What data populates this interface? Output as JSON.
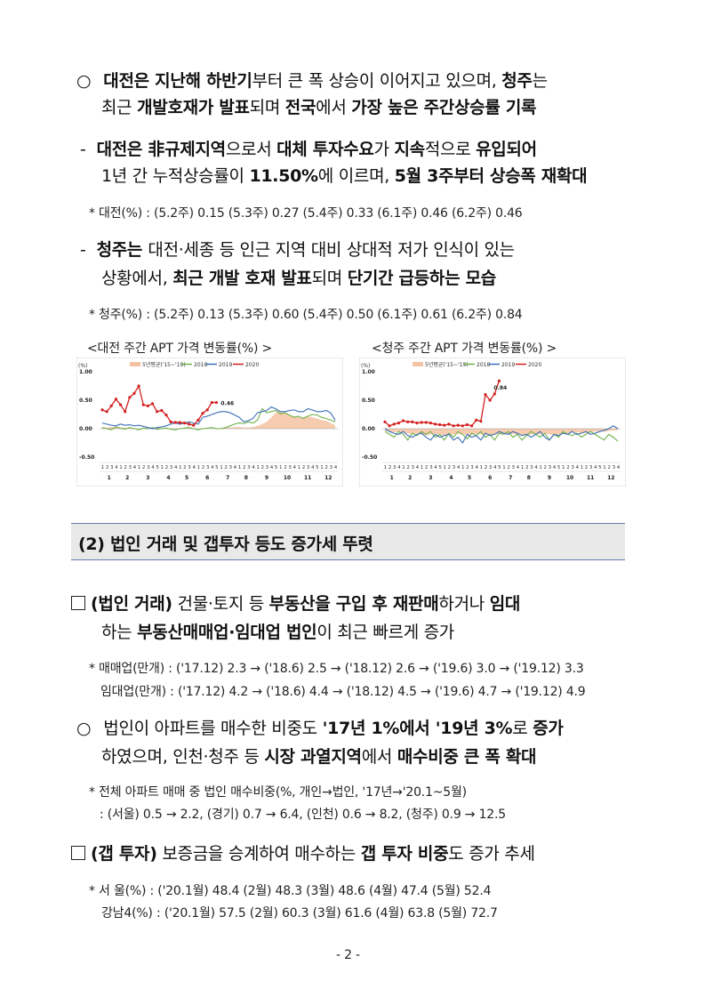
{
  "paragraphs": {
    "daejeon_intro": {
      "bullet": "○",
      "line1": [
        {
          "t": "대전은 지난해 하반기",
          "b": true
        },
        {
          "t": "부터 큰 폭 상승이 이어지고 있으며, ",
          "b": false
        },
        {
          "t": "청주",
          "b": true
        },
        {
          "t": "는",
          "b": false
        }
      ],
      "line2": [
        {
          "t": "최근 ",
          "b": false
        },
        {
          "t": "개발호재가 발표",
          "b": true
        },
        {
          "t": "되며 ",
          "b": false
        },
        {
          "t": "전국",
          "b": true
        },
        {
          "t": "에서 ",
          "b": false
        },
        {
          "t": "가장 높은 주간상승률 기록",
          "b": true
        }
      ]
    },
    "daejeon_detail": {
      "bullet": "-",
      "line1": [
        {
          "t": "대전은 非규제지역",
          "b": true
        },
        {
          "t": "으로서 ",
          "b": false
        },
        {
          "t": "대체 투자수요",
          "b": true
        },
        {
          "t": "가 ",
          "b": false
        },
        {
          "t": "지속",
          "b": true
        },
        {
          "t": "적으로 ",
          "b": false
        },
        {
          "t": "유입되어",
          "b": true
        }
      ],
      "line2": [
        {
          "t": "1년 간 누적상승률이 ",
          "b": false
        },
        {
          "t": "11.50%",
          "b": true
        },
        {
          "t": "에 이르며, ",
          "b": false
        },
        {
          "t": "5월 3주부터 상승폭 재확대",
          "b": true
        }
      ],
      "note": "* 대전(%) : (5.2주) 0.15 (5.3주) 0.27 (5.4주) 0.33 (6.1주) 0.46 (6.2주) 0.46"
    },
    "cheongju_detail": {
      "bullet": "-",
      "line1": [
        {
          "t": "청주는 ",
          "b": true
        },
        {
          "t": "대전·세종 등 인근 지역 대비 상대적 저가 인식이 있는",
          "b": false
        }
      ],
      "line2": [
        {
          "t": "상황에서, ",
          "b": false
        },
        {
          "t": "최근 개발 호재 발표",
          "b": true
        },
        {
          "t": "되며 ",
          "b": false
        },
        {
          "t": "단기간 급등하는 모습",
          "b": true
        }
      ],
      "note": "* 청주(%) : (5.2주) 0.13 (5.3주) 0.60 (5.4주) 0.50 (6.1주) 0.61 (6.2주) 0.84"
    },
    "section_title": "(2) 법인 거래 및 갭투자 등도 증가세 뚜렷",
    "corporate": {
      "line1": [
        {
          "t": "(법인 거래)",
          "b": true
        },
        {
          "t": " 건물·토지 등 ",
          "b": false
        },
        {
          "t": "부동산을 구입 후 재판매",
          "b": true
        },
        {
          "t": "하거나 ",
          "b": false
        },
        {
          "t": "임대",
          "b": true
        }
      ],
      "line2": [
        {
          "t": "하는 ",
          "b": false
        },
        {
          "t": "부동산매매업·임대업 법인",
          "b": true
        },
        {
          "t": "이 최근 빠르게 증가",
          "b": false
        }
      ],
      "note1": "* 매매업(만개) : ('17.12) 2.3 → ('18.6) 2.5 → ('18.12) 2.6 → ('19.6) 3.0 → ('19.12) 3.3",
      "note2": "임대업(만개) : ('17.12) 4.2 → ('18.6) 4.4 → ('18.12) 4.5 → ('19.6) 4.7 → ('19.12) 4.9"
    },
    "corporate_share": {
      "bullet": "○",
      "line1": [
        {
          "t": "법인이 아파트를 매수한 비중도 ",
          "b": false
        },
        {
          "t": "'17년 1%에서 '19년 3%",
          "b": true
        },
        {
          "t": "로 ",
          "b": false
        },
        {
          "t": "증가",
          "b": true
        }
      ],
      "line2": [
        {
          "t": "하였으며, 인천·청주 등 ",
          "b": false
        },
        {
          "t": "시장 과열지역",
          "b": true
        },
        {
          "t": "에서 ",
          "b": false
        },
        {
          "t": "매수비중 큰 폭 확대",
          "b": true
        }
      ],
      "note1": "* 전체 아파트 매매 중 법인 매수비중(%, 개인→법인, '17년→'20.1~5월)",
      "note2": ": (서울) 0.5 → 2.2, (경기) 0.7 → 6.4, (인천) 0.6 → 8.2, (청주) 0.9 → 12.5"
    },
    "gap": {
      "line1": [
        {
          "t": "(갭 투자)",
          "b": true
        },
        {
          "t": " 보증금을 승계하여 매수하는 ",
          "b": false
        },
        {
          "t": "갭 투자 비중",
          "b": true
        },
        {
          "t": "도 증가 추세",
          "b": false
        }
      ],
      "note1": "* 서  울(%) : ('20.1월) 48.4 (2월) 48.3 (3월) 48.6 (4월) 47.4 (5월) 52.4",
      "note2": "강남4(%) : ('20.1월) 57.5 (2월) 60.3 (3월) 61.6 (4월) 63.8 (5월) 72.7"
    },
    "page_number": "- 2 -"
  },
  "legend_labels": [
    "5년평균('15~'19)",
    "2018",
    "2019",
    "2020"
  ],
  "colors": {
    "avg": "#f4c2a1",
    "y2018": "#6fb24a",
    "y2019": "#3d6fb8",
    "y2020": "#d42020"
  },
  "chart_data": [
    {
      "type": "line",
      "title": "<대전 주간 APT 가격 변동률(%) >",
      "unit_label": "(%)",
      "ylim": [
        -0.5,
        1.0
      ],
      "yticks": [
        "1.00",
        "0.50",
        "0.00",
        "-0.50"
      ],
      "week_labels": "1234123412345123412341234512341234123451234123451234",
      "month_labels": [
        "1",
        "2",
        "3",
        "4",
        "5",
        "6",
        "7",
        "8",
        "9",
        "10",
        "11",
        "12"
      ],
      "annotation": "0.46",
      "series": [
        {
          "name": "5년평균('15~'19)",
          "values": [
            0.02,
            0.02,
            0.03,
            0.03,
            0.02,
            0.02,
            0.01,
            0.0,
            0.0,
            0.0,
            0.01,
            0.01,
            0.02,
            0.01,
            0.0,
            -0.01,
            0.0,
            0.0,
            0.01,
            0.01,
            0.01,
            0.0,
            0.01,
            0.0,
            0.0,
            0.01,
            0.01,
            0.02,
            0.02,
            0.03,
            0.03,
            0.02,
            0.02,
            0.03,
            0.05,
            0.08,
            0.12,
            0.2,
            0.28,
            0.3,
            0.27,
            0.24,
            0.22,
            0.2,
            0.2,
            0.22,
            0.2,
            0.18,
            0.15,
            0.14,
            0.1,
            0.06
          ]
        },
        {
          "name": "2018",
          "values": [
            0.02,
            0.0,
            -0.02,
            0.03,
            0.01,
            -0.01,
            0.02,
            0.0,
            -0.02,
            0.01,
            0.0,
            0.02,
            -0.01,
            0.0,
            0.01,
            -0.01,
            -0.02,
            0.0,
            0.01,
            0.02,
            0.0,
            -0.02,
            0.0,
            0.01,
            0.02,
            0.0,
            0.0,
            0.02,
            0.05,
            0.08,
            0.1,
            0.09,
            0.12,
            0.1,
            0.15,
            0.35,
            0.28,
            0.3,
            0.32,
            0.26,
            0.28,
            0.24,
            0.2,
            0.22,
            0.18,
            0.22,
            0.25,
            0.24,
            0.2,
            0.18,
            0.15,
            0.12
          ]
        },
        {
          "name": "2019",
          "values": [
            0.1,
            0.08,
            0.06,
            0.05,
            0.08,
            0.06,
            0.07,
            0.05,
            0.06,
            0.04,
            0.02,
            0.0,
            0.02,
            0.03,
            0.05,
            0.08,
            0.1,
            0.08,
            0.1,
            0.12,
            0.1,
            0.08,
            0.2,
            0.22,
            0.25,
            0.28,
            0.3,
            0.3,
            0.28,
            0.24,
            0.2,
            0.12,
            0.14,
            0.18,
            0.28,
            0.3,
            0.32,
            0.38,
            0.35,
            0.3,
            0.3,
            0.32,
            0.33,
            0.3,
            0.3,
            0.35,
            0.33,
            0.3,
            0.3,
            0.32,
            0.28,
            0.15
          ]
        },
        {
          "name": "2020",
          "values": [
            0.33,
            0.3,
            0.4,
            0.52,
            0.42,
            0.3,
            0.55,
            0.62,
            0.75,
            0.42,
            0.4,
            0.44,
            0.3,
            0.32,
            0.24,
            0.12,
            0.11,
            0.11,
            0.1,
            0.08,
            0.06,
            0.15,
            0.27,
            0.33,
            0.46,
            0.46
          ]
        }
      ]
    },
    {
      "type": "line",
      "title": "<청주 주간 APT 가격 변동률(%) >",
      "unit_label": "(%)",
      "ylim": [
        -0.5,
        1.0
      ],
      "yticks": [
        "1.00",
        "0.50",
        "0.00",
        "-0.50"
      ],
      "week_labels": "1234123412345123412341234512341234123451234123451234",
      "month_labels": [
        "1",
        "2",
        "3",
        "4",
        "5",
        "6",
        "7",
        "8",
        "9",
        "10",
        "11",
        "12"
      ],
      "annotation": "0.84",
      "series": [
        {
          "name": "5년평균('15~'19)",
          "values": [
            -0.04,
            -0.05,
            -0.06,
            -0.05,
            -0.07,
            -0.08,
            -0.1,
            -0.08,
            -0.1,
            -0.12,
            -0.1,
            -0.09,
            -0.1,
            -0.12,
            -0.11,
            -0.1,
            -0.09,
            -0.1,
            -0.11,
            -0.1,
            -0.09,
            -0.1,
            -0.1,
            -0.11,
            -0.1,
            -0.09,
            -0.08,
            -0.1,
            -0.09,
            -0.1,
            -0.11,
            -0.12,
            -0.1,
            -0.09,
            -0.1,
            -0.08,
            -0.1,
            -0.11,
            -0.1,
            -0.09,
            -0.08,
            -0.07,
            -0.06,
            -0.08,
            -0.07,
            -0.06,
            -0.05,
            -0.04,
            -0.05,
            -0.04,
            -0.03,
            -0.03
          ]
        },
        {
          "name": "2018",
          "values": [
            -0.05,
            -0.1,
            -0.15,
            -0.05,
            -0.1,
            -0.2,
            -0.08,
            -0.12,
            -0.05,
            -0.1,
            -0.05,
            -0.15,
            -0.1,
            -0.2,
            -0.08,
            -0.15,
            -0.05,
            -0.1,
            -0.18,
            -0.08,
            -0.12,
            -0.05,
            -0.15,
            -0.1,
            -0.2,
            -0.08,
            -0.1,
            -0.05,
            -0.15,
            -0.1,
            -0.2,
            -0.12,
            -0.05,
            -0.1,
            -0.15,
            -0.08,
            -0.2,
            -0.1,
            -0.15,
            -0.05,
            -0.1,
            -0.12,
            -0.08,
            -0.15,
            -0.1,
            -0.05,
            -0.1,
            -0.15,
            -0.2,
            -0.1,
            -0.15,
            -0.22
          ]
        },
        {
          "name": "2019",
          "values": [
            0.0,
            -0.05,
            -0.08,
            -0.1,
            -0.05,
            -0.12,
            -0.15,
            -0.1,
            -0.08,
            -0.15,
            -0.2,
            -0.1,
            -0.15,
            -0.12,
            -0.1,
            -0.2,
            -0.15,
            -0.25,
            -0.1,
            -0.15,
            -0.12,
            -0.2,
            -0.08,
            -0.12,
            -0.1,
            -0.05,
            -0.08,
            -0.1,
            -0.05,
            -0.08,
            -0.12,
            -0.1,
            -0.15,
            -0.1,
            -0.05,
            -0.15,
            -0.2,
            -0.1,
            -0.12,
            -0.08,
            -0.1,
            -0.05,
            -0.1,
            -0.08,
            -0.05,
            -0.1,
            -0.08,
            -0.05,
            -0.03,
            0.0,
            0.05,
            0.0
          ]
        },
        {
          "name": "2020",
          "values": [
            0.12,
            0.05,
            0.08,
            0.1,
            0.14,
            0.12,
            0.12,
            0.1,
            0.11,
            0.11,
            0.1,
            0.08,
            0.07,
            0.06,
            0.08,
            0.05,
            0.06,
            0.05,
            0.07,
            0.05,
            0.15,
            0.13,
            0.6,
            0.5,
            0.61,
            0.84
          ]
        }
      ]
    }
  ]
}
